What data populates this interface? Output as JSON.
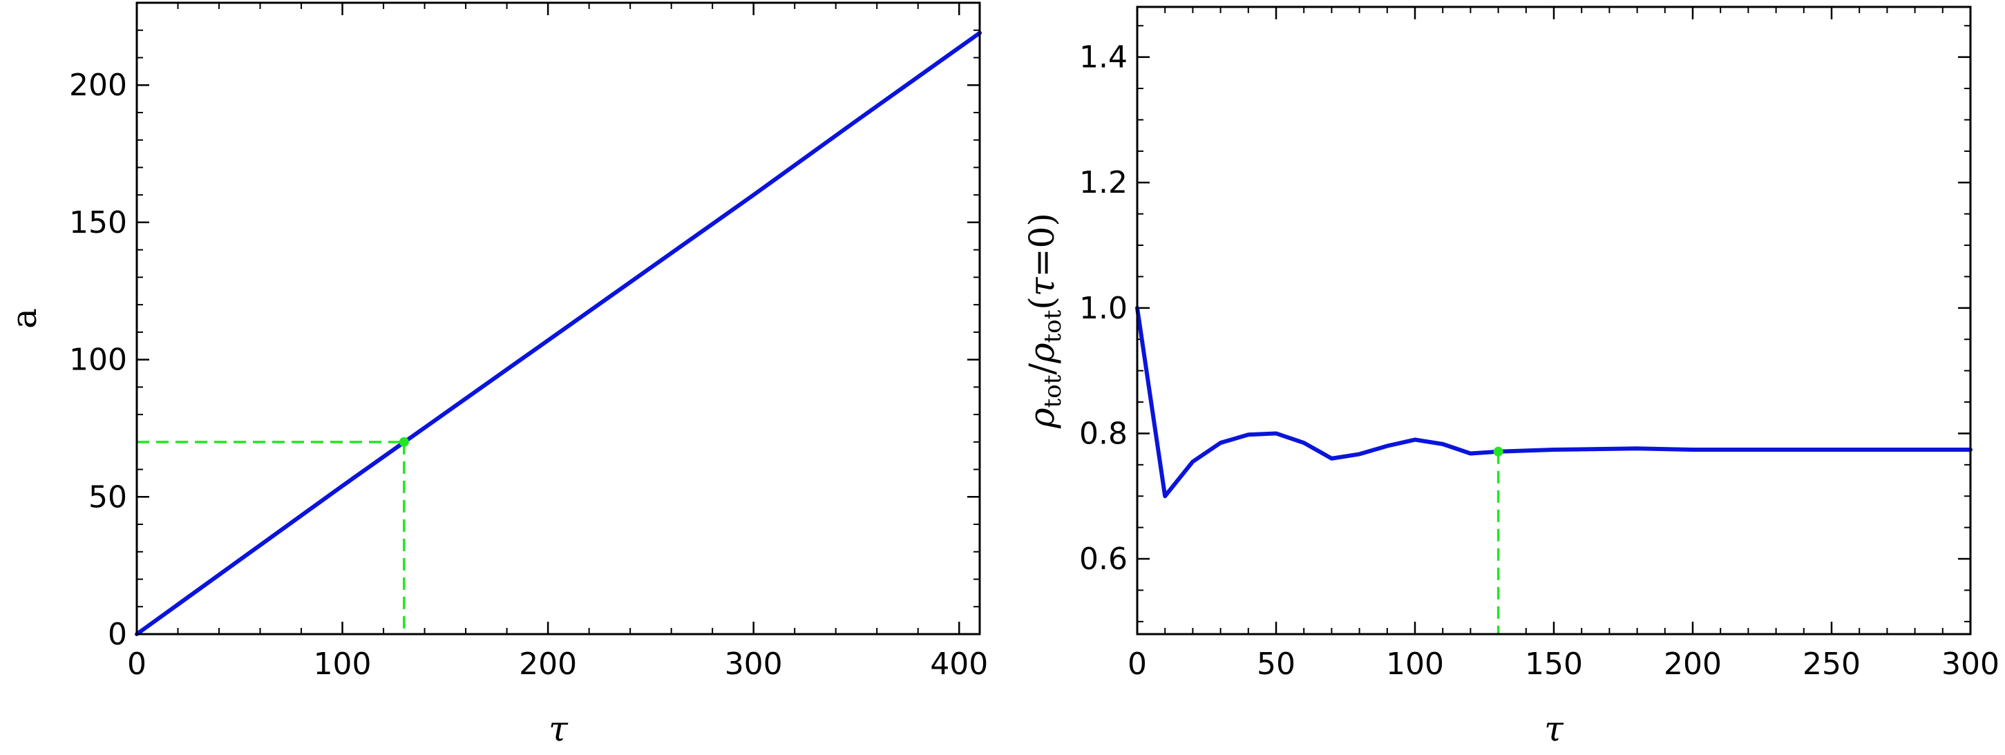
{
  "chart_data": [
    {
      "type": "line",
      "xlabel": "τ",
      "ylabel": "a",
      "xlim": [
        0,
        410
      ],
      "ylim": [
        0,
        230
      ],
      "xticks": [
        0,
        100,
        200,
        300,
        400
      ],
      "yticks": [
        0,
        50,
        100,
        150,
        200
      ],
      "grid": false,
      "series": [
        {
          "x": [
            0,
            50,
            100,
            150,
            200,
            250,
            300,
            350,
            410
          ],
          "y": [
            0,
            27,
            54,
            80.5,
            107,
            133.5,
            160,
            187,
            219
          ]
        }
      ],
      "marker": {
        "x": 130,
        "y": 70
      },
      "colors": {
        "line": "#0a14dc",
        "marker": "#22e622"
      }
    },
    {
      "type": "line",
      "xlabel": "τ",
      "ylabel": "ρtot/ρtot(τ=0)",
      "xlim": [
        0,
        300
      ],
      "ylim": [
        0.48,
        1.48
      ],
      "xticks": [
        0,
        50,
        100,
        150,
        200,
        250,
        300
      ],
      "yticks": [
        0.6,
        0.8,
        1.0,
        1.2,
        1.4
      ],
      "grid": false,
      "series": [
        {
          "x": [
            0,
            10,
            20,
            30,
            40,
            50,
            60,
            70,
            80,
            90,
            100,
            110,
            120,
            130,
            150,
            180,
            200,
            250,
            300
          ],
          "y": [
            1.0,
            0.7,
            0.755,
            0.785,
            0.798,
            0.8,
            0.785,
            0.76,
            0.767,
            0.78,
            0.79,
            0.783,
            0.768,
            0.771,
            0.774,
            0.776,
            0.774,
            0.774,
            0.774
          ]
        }
      ],
      "marker": {
        "x": 130,
        "y": 0.771
      },
      "colors": {
        "line": "#0a14dc",
        "marker": "#22e622"
      }
    }
  ]
}
